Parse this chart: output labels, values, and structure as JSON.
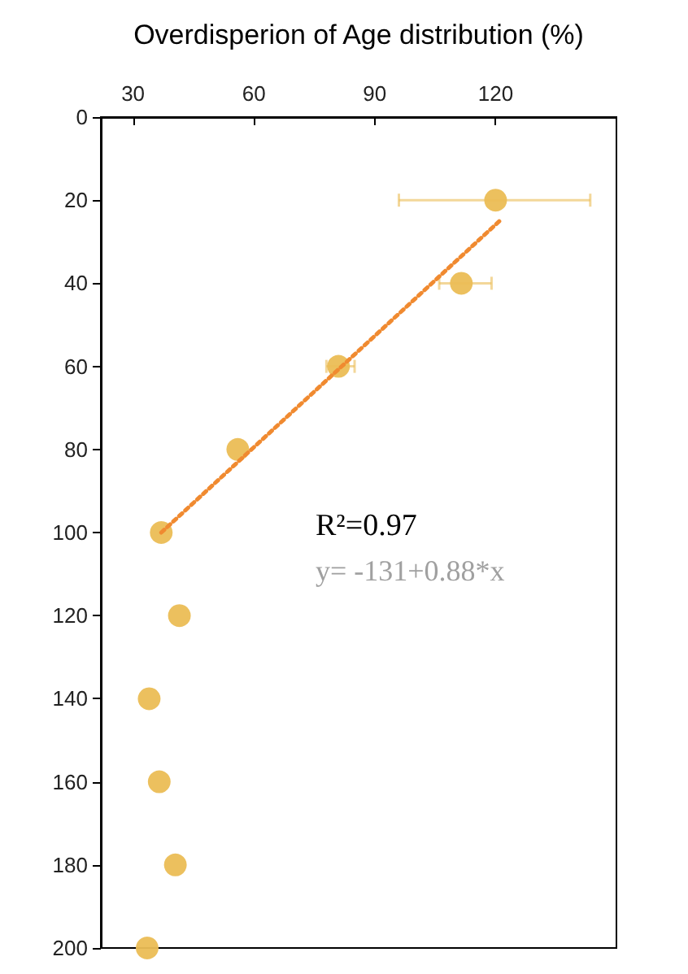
{
  "chart_data": {
    "type": "scatter",
    "xlabel": "Overdisperion of Age distribution (%)",
    "xlim": [
      22,
      150
    ],
    "xticks": [
      30,
      60,
      90,
      120
    ],
    "ylim": [
      200,
      0
    ],
    "yticks": [
      0,
      20,
      40,
      60,
      80,
      100,
      120,
      140,
      160,
      180,
      200
    ],
    "grid": false,
    "marker": "circle",
    "series": [
      {
        "color": "#ebbd55",
        "x": [
          120,
          111.5,
          81,
          56,
          37,
          41.5,
          34,
          36.5,
          40.5,
          33.5
        ],
        "values": [
          20,
          40,
          60,
          80,
          100,
          120,
          140,
          160,
          180,
          200
        ],
        "xerrors": [
          [
            96,
            143.5
          ],
          [
            106,
            119
          ],
          [
            78,
            85
          ],
          null,
          null,
          null,
          null,
          null,
          null,
          null
        ]
      },
      {
        "type": "line",
        "color": "#f08a30",
        "line_style": "dotted",
        "marker": "none",
        "x": [
          37,
          121
        ],
        "values": [
          100,
          25
        ]
      }
    ],
    "annotations": [
      "R²=0.97",
      "y= -131+0.88*x"
    ]
  }
}
